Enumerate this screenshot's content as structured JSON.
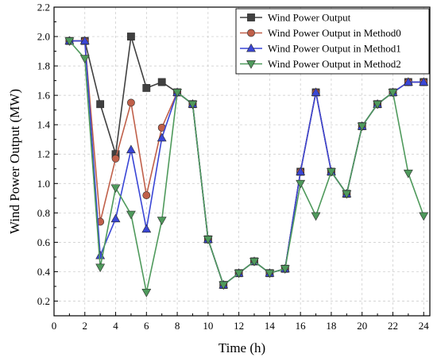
{
  "chart_data": {
    "type": "line",
    "xlabel": "Time (h)",
    "ylabel": "Wind Power Output (MW)",
    "xlim": [
      0,
      24.4
    ],
    "ylim": [
      0.1,
      2.2
    ],
    "xticks": [
      0,
      2,
      4,
      6,
      8,
      10,
      12,
      14,
      16,
      18,
      20,
      22,
      24
    ],
    "yticks": [
      0.2,
      0.4,
      0.6,
      0.8,
      1.0,
      1.2,
      1.4,
      1.6,
      1.8,
      2.0,
      2.2
    ],
    "grid": true,
    "legend_position": "top-right",
    "series": [
      {
        "name": "Wind Power Output",
        "color": "#404040",
        "marker": "square",
        "x": [
          1,
          2,
          3,
          4,
          5,
          6,
          7,
          8,
          9,
          10,
          11,
          12,
          13,
          14,
          15,
          16,
          17,
          18,
          19,
          20,
          21,
          22,
          23,
          24
        ],
        "values": [
          1.97,
          1.97,
          1.54,
          1.2,
          2.0,
          1.65,
          1.69,
          1.62,
          1.54,
          0.62,
          0.31,
          0.39,
          0.47,
          0.39,
          0.42,
          1.08,
          1.62,
          1.08,
          0.93,
          1.39,
          1.54,
          1.62,
          1.69,
          1.69
        ]
      },
      {
        "name": "Wind Power Output in Method0",
        "color": "#c0604a",
        "marker": "circle",
        "x": [
          1,
          2,
          3,
          4,
          5,
          6,
          7,
          8,
          9,
          10,
          11,
          12,
          13,
          14,
          15,
          16,
          17,
          18,
          19,
          20,
          21,
          22,
          23,
          24
        ],
        "values": [
          1.97,
          1.97,
          0.74,
          1.17,
          1.55,
          0.92,
          1.38,
          1.62,
          1.54,
          0.62,
          0.31,
          0.39,
          0.47,
          0.39,
          0.42,
          1.08,
          1.62,
          1.08,
          0.93,
          1.39,
          1.54,
          1.62,
          1.69,
          1.69
        ]
      },
      {
        "name": "Wind Power Output in Method1",
        "color": "#3a46d6",
        "marker": "triangle-up",
        "x": [
          1,
          2,
          3,
          4,
          5,
          6,
          7,
          8,
          9,
          10,
          11,
          12,
          13,
          14,
          15,
          16,
          17,
          18,
          19,
          20,
          21,
          22,
          23,
          24
        ],
        "values": [
          1.97,
          1.97,
          0.51,
          0.76,
          1.23,
          0.69,
          1.31,
          1.62,
          1.54,
          0.62,
          0.31,
          0.39,
          0.47,
          0.39,
          0.42,
          1.08,
          1.62,
          1.08,
          0.93,
          1.39,
          1.54,
          1.62,
          1.69,
          1.69
        ]
      },
      {
        "name": "Wind Power Output in Method2",
        "color": "#4f9a5c",
        "marker": "triangle-down",
        "x": [
          1,
          2,
          3,
          4,
          5,
          6,
          7,
          8,
          9,
          10,
          11,
          12,
          13,
          14,
          15,
          16,
          17,
          18,
          19,
          20,
          21,
          22,
          23,
          24
        ],
        "values": [
          1.97,
          1.85,
          0.43,
          0.97,
          0.79,
          0.26,
          0.75,
          1.62,
          1.54,
          0.62,
          0.31,
          0.39,
          0.47,
          0.39,
          0.42,
          1.0,
          0.78,
          1.08,
          0.93,
          1.39,
          1.54,
          1.62,
          1.07,
          0.78
        ]
      }
    ]
  }
}
